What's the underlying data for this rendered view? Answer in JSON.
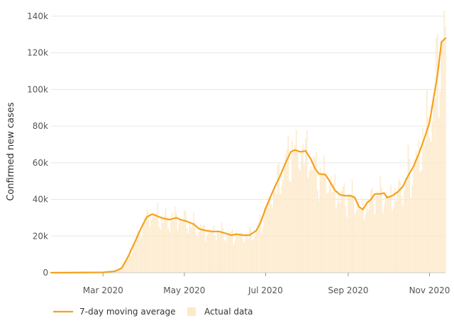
{
  "chart_data": {
    "type": "bar",
    "title": "",
    "xlabel": "",
    "ylabel": "Confirmed new cases",
    "ylim": [
      0,
      145000
    ],
    "y_ticks": [
      0,
      20000,
      40000,
      60000,
      80000,
      100000,
      120000,
      140000
    ],
    "y_tick_labels": [
      "0",
      "20k",
      "40k",
      "60k",
      "80k",
      "100k",
      "120k",
      "140k"
    ],
    "x_tick_labels": [
      "Mar 2020",
      "May 2020",
      "Jul 2020",
      "Sep 2020",
      "Nov 2020"
    ],
    "x_tick_dates": [
      "2020-03-01",
      "2020-05-01",
      "2020-07-01",
      "2020-09-01",
      "2020-11-01"
    ],
    "x_range": [
      "2020-01-22",
      "2020-11-13"
    ],
    "grid": "horizontal",
    "legend_position": "bottom-left",
    "colors": {
      "moving_average": "#f5a11d",
      "actual": "#fde9c9",
      "grid": "#e6e6e6"
    },
    "series": [
      {
        "name": "7-day moving average",
        "kind": "line",
        "points": [
          [
            "2020-01-22",
            0
          ],
          [
            "2020-03-01",
            200
          ],
          [
            "2020-03-10",
            800
          ],
          [
            "2020-03-15",
            2500
          ],
          [
            "2020-03-20",
            9000
          ],
          [
            "2020-03-25",
            17000
          ],
          [
            "2020-03-30",
            25000
          ],
          [
            "2020-04-03",
            30500
          ],
          [
            "2020-04-07",
            32000
          ],
          [
            "2020-04-12",
            30500
          ],
          [
            "2020-04-16",
            29500
          ],
          [
            "2020-04-20",
            29000
          ],
          [
            "2020-04-25",
            30000
          ],
          [
            "2020-04-28",
            29000
          ],
          [
            "2020-05-03",
            28000
          ],
          [
            "2020-05-08",
            26500
          ],
          [
            "2020-05-12",
            24000
          ],
          [
            "2020-05-17",
            23000
          ],
          [
            "2020-05-22",
            22500
          ],
          [
            "2020-05-27",
            22500
          ],
          [
            "2020-06-01",
            21500
          ],
          [
            "2020-06-05",
            20500
          ],
          [
            "2020-06-09",
            21000
          ],
          [
            "2020-06-14",
            20500
          ],
          [
            "2020-06-19",
            20500
          ],
          [
            "2020-06-24",
            23000
          ],
          [
            "2020-06-27",
            27000
          ],
          [
            "2020-07-01",
            35000
          ],
          [
            "2020-07-05",
            42000
          ],
          [
            "2020-07-08",
            47000
          ],
          [
            "2020-07-12",
            53000
          ],
          [
            "2020-07-16",
            60000
          ],
          [
            "2020-07-20",
            66000
          ],
          [
            "2020-07-23",
            67000
          ],
          [
            "2020-07-27",
            66000
          ],
          [
            "2020-07-31",
            66500
          ],
          [
            "2020-08-04",
            62000
          ],
          [
            "2020-08-07",
            57000
          ],
          [
            "2020-08-10",
            54000
          ],
          [
            "2020-08-15",
            53500
          ],
          [
            "2020-08-18",
            50000
          ],
          [
            "2020-08-22",
            45000
          ],
          [
            "2020-08-26",
            42500
          ],
          [
            "2020-08-30",
            42000
          ],
          [
            "2020-09-03",
            42000
          ],
          [
            "2020-09-06",
            41000
          ],
          [
            "2020-09-09",
            36000
          ],
          [
            "2020-09-12",
            34500
          ],
          [
            "2020-09-15",
            38000
          ],
          [
            "2020-09-18",
            40000
          ],
          [
            "2020-09-21",
            43000
          ],
          [
            "2020-09-25",
            43000
          ],
          [
            "2020-09-28",
            43500
          ],
          [
            "2020-09-30",
            41000
          ],
          [
            "2020-10-04",
            42000
          ],
          [
            "2020-10-08",
            44000
          ],
          [
            "2020-10-12",
            47000
          ],
          [
            "2020-10-16",
            53000
          ],
          [
            "2020-10-20",
            58000
          ],
          [
            "2020-10-24",
            65000
          ],
          [
            "2020-10-28",
            73000
          ],
          [
            "2020-11-01",
            82000
          ],
          [
            "2020-11-04",
            95000
          ],
          [
            "2020-11-07",
            108000
          ],
          [
            "2020-11-10",
            126000
          ],
          [
            "2020-11-13",
            128000
          ]
        ]
      },
      {
        "name": "Actual data",
        "kind": "bar",
        "daily": "approximated from the chart; daily values scatter around the moving average",
        "spikes": [
          [
            "2020-04-24",
            36000
          ],
          [
            "2020-05-01",
            34000
          ],
          [
            "2020-07-24",
            78000
          ],
          [
            "2020-07-31",
            73000
          ],
          [
            "2020-08-14",
            64000
          ],
          [
            "2020-10-16",
            70000
          ],
          [
            "2020-10-30",
            100000
          ],
          [
            "2020-11-06",
            128000
          ],
          [
            "2020-11-12",
            143000
          ]
        ]
      }
    ]
  }
}
